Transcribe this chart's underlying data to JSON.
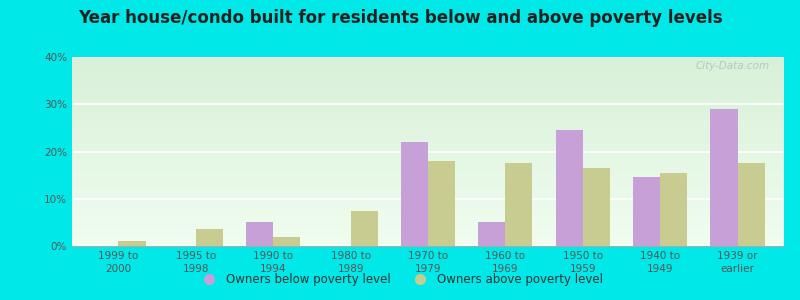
{
  "title": "Year house/condo built for residents below and above poverty levels",
  "categories": [
    "1999 to\n2000",
    "1995 to\n1998",
    "1990 to\n1994",
    "1980 to\n1989",
    "1970 to\n1979",
    "1960 to\n1969",
    "1950 to\n1959",
    "1940 to\n1949",
    "1939 or\nearlier"
  ],
  "below_poverty": [
    0.0,
    0.0,
    5.0,
    0.0,
    22.0,
    5.0,
    24.5,
    14.5,
    29.0
  ],
  "above_poverty": [
    1.0,
    3.5,
    2.0,
    7.5,
    18.0,
    17.5,
    16.5,
    15.5,
    17.5
  ],
  "below_color": "#c8a0d8",
  "above_color": "#c8cc90",
  "background_color": "#00e8e8",
  "ylim": [
    0,
    40
  ],
  "yticks": [
    0,
    10,
    20,
    30,
    40
  ],
  "title_fontsize": 12,
  "tick_fontsize": 7.5,
  "legend_fontsize": 8.5,
  "bar_width": 0.35,
  "watermark": "City-Data.com",
  "legend_below_label": "Owners below poverty level",
  "legend_above_label": "Owners above poverty level"
}
